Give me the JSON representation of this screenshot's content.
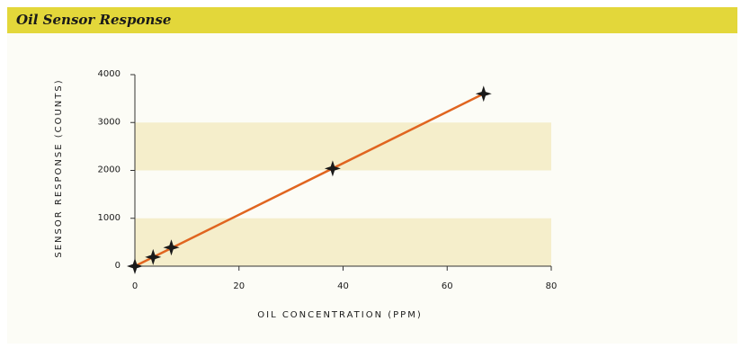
{
  "header": {
    "title": "Oil Sensor Response"
  },
  "colors": {
    "header_band": "#e3d73a",
    "card_background": "#fcfcf6",
    "alternate_band": "#f5eecb",
    "line": "#e06520",
    "marker": "#1a1a1a",
    "axis": "#333333"
  },
  "chart_data": {
    "type": "line",
    "title": "Oil Sensor Response",
    "xlabel": "OIL CONCENTRATION (PPM)",
    "ylabel": "SENSOR RESPONSE (COUNTS)",
    "xlim": [
      0,
      80
    ],
    "ylim": [
      0,
      4000
    ],
    "x_ticks": [
      "0",
      "20",
      "40",
      "60",
      "80"
    ],
    "y_ticks": [
      "0",
      "1000",
      "2000",
      "3000",
      "4000"
    ],
    "shaded_bands": [
      [
        0,
        1000
      ],
      [
        2000,
        3000
      ]
    ],
    "grid": false,
    "legend": "none",
    "fit_line": {
      "x": [
        0,
        67
      ],
      "y": [
        0,
        3600
      ]
    },
    "series": [
      {
        "marker": "four-point-star",
        "points": [
          {
            "x": 0,
            "y": 0
          },
          {
            "x": 3.5,
            "y": 190
          },
          {
            "x": 7,
            "y": 390
          },
          {
            "x": 38,
            "y": 2040
          },
          {
            "x": 67,
            "y": 3600
          }
        ]
      }
    ]
  }
}
